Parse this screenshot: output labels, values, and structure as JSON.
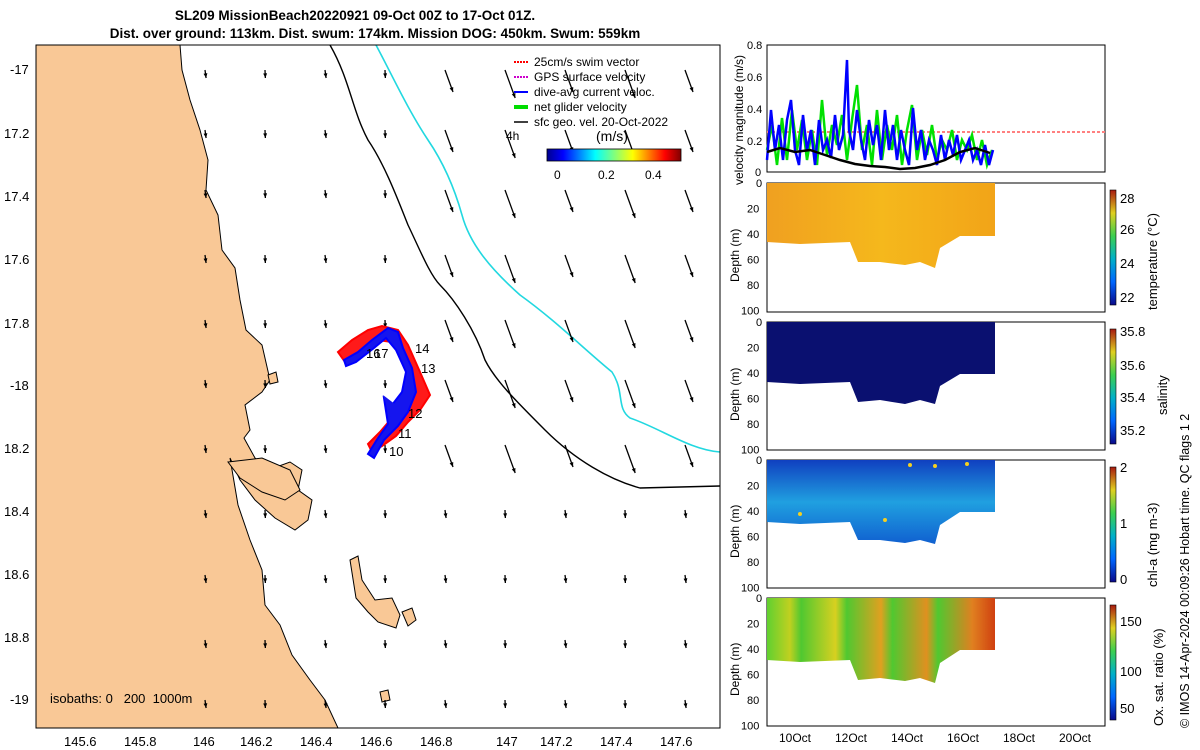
{
  "title": {
    "line1": "SL209 MissionBeach20220921 09-Oct 00Z to 17-Oct 01Z.",
    "line2": "Dist. over ground: 113km. Dist. swum: 174km. Mission DOG: 450km. Swum: 559km"
  },
  "map": {
    "lat_ticks": [
      "-17",
      "17.2",
      "17.4",
      "17.6",
      "17.8",
      "-18",
      "18.2",
      "18.4",
      "18.6",
      "18.8",
      "-19"
    ],
    "lon_ticks": [
      "145.6",
      "145.8",
      "146",
      "146.2",
      "146.4",
      "146.6",
      "146.8",
      "147",
      "147.2",
      "147.4",
      "147.6"
    ],
    "legend": [
      {
        "label": "25cm/s swim vector",
        "color": "#ff0000"
      },
      {
        "label": "GPS surface velocity",
        "color": "#cc00cc"
      },
      {
        "label": "dive-avg current veloc.",
        "color": "#0000ff"
      },
      {
        "label": "net glider velocity",
        "color": "#00dd00"
      },
      {
        "label": "sfc geo. vel. 20-Oct-2022",
        "color": "#000000"
      }
    ],
    "colorbar_unit": "(m/s)",
    "colorbar_ticks": [
      "0",
      "0.2",
      "0.4"
    ],
    "time_marker": "4h",
    "isobaths_label": "isobaths: 0   200  1000m",
    "day_labels": [
      "10",
      "11",
      "12",
      "13",
      "14",
      "16",
      "17"
    ],
    "land_color": "#f9c896"
  },
  "panels": {
    "velocity": {
      "ylabel": "velocity magnitude (m/s)",
      "yticks": [
        "0.8",
        "0.6",
        "0.4",
        "0.2",
        "0"
      ]
    },
    "temperature": {
      "ylabel": "temperature (°C)",
      "cticks": [
        "28",
        "26",
        "24",
        "22"
      ]
    },
    "salinity": {
      "ylabel": "salinity",
      "cticks": [
        "35.8",
        "35.6",
        "35.4",
        "35.2"
      ]
    },
    "chla": {
      "ylabel": "chl-a (mg m-3)",
      "cticks": [
        "2",
        "1",
        "0"
      ]
    },
    "oxygen": {
      "ylabel": "Ox. sat. ratio (%)",
      "cticks": [
        "150",
        "100",
        "50"
      ]
    },
    "depth_label": "Depth (m)",
    "depth_ticks": [
      "0",
      "20",
      "40",
      "60",
      "80",
      "100"
    ],
    "date_ticks": [
      "10Oct",
      "12Oct",
      "14Oct",
      "16Oct",
      "18Oct",
      "20Oct"
    ]
  },
  "credit": "© IMOS 14-Apr-2024 00:09:26 Hobart time. QC flags 1  2"
}
